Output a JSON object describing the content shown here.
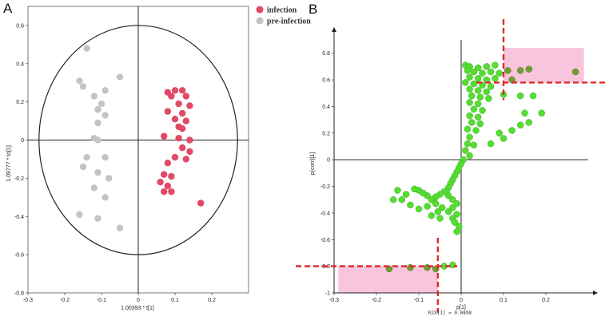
{
  "panels": {
    "a": "A",
    "b": "B"
  },
  "chart_data": [
    {
      "type": "scatter",
      "title": "",
      "xlabel": "1.00393 * t[1]",
      "ylabel": "1.09777 * to[1]",
      "xlim": [
        -0.3,
        0.3
      ],
      "ylim": [
        -0.8,
        0.7
      ],
      "xticks": [
        "-0.3",
        "-0.2",
        "-0.1",
        "0",
        "0.1",
        "0.2"
      ],
      "yticks": [
        "0.6",
        "0.4",
        "0.2",
        "0",
        "-0.2",
        "-0.4",
        "-0.6",
        "-0.8"
      ],
      "grid": false,
      "legend_position": "top-right",
      "ellipse": {
        "rx": 0.27,
        "ry": 0.6
      },
      "series": [
        {
          "name": "infection",
          "color": "#e04a66",
          "points": [
            [
              0.08,
              0.25
            ],
            [
              0.1,
              0.26
            ],
            [
              0.12,
              0.26
            ],
            [
              0.09,
              0.23
            ],
            [
              0.13,
              0.23
            ],
            [
              0.11,
              0.19
            ],
            [
              0.14,
              0.18
            ],
            [
              0.08,
              0.15
            ],
            [
              0.12,
              0.14
            ],
            [
              0.1,
              0.11
            ],
            [
              0.13,
              0.1
            ],
            [
              0.11,
              0.07
            ],
            [
              0.12,
              0.06
            ],
            [
              0.07,
              0.02
            ],
            [
              0.11,
              0.01
            ],
            [
              0.14,
              0.0
            ],
            [
              0.12,
              -0.04
            ],
            [
              0.14,
              -0.06
            ],
            [
              0.1,
              -0.09
            ],
            [
              0.13,
              -0.1
            ],
            [
              0.08,
              -0.12
            ],
            [
              0.07,
              -0.18
            ],
            [
              0.09,
              -0.19
            ],
            [
              0.06,
              -0.22
            ],
            [
              0.08,
              -0.24
            ],
            [
              0.07,
              -0.27
            ],
            [
              0.09,
              -0.27
            ],
            [
              0.17,
              -0.33
            ]
          ]
        },
        {
          "name": "pre-infection",
          "color": "#c4c4c4",
          "points": [
            [
              -0.14,
              0.48
            ],
            [
              -0.05,
              0.33
            ],
            [
              -0.16,
              0.31
            ],
            [
              -0.15,
              0.28
            ],
            [
              -0.09,
              0.26
            ],
            [
              -0.12,
              0.23
            ],
            [
              -0.1,
              0.19
            ],
            [
              -0.11,
              0.16
            ],
            [
              -0.09,
              0.13
            ],
            [
              -0.11,
              0.09
            ],
            [
              -0.12,
              0.01
            ],
            [
              -0.11,
              0.0
            ],
            [
              -0.09,
              -0.09
            ],
            [
              -0.14,
              -0.09
            ],
            [
              -0.15,
              -0.14
            ],
            [
              -0.11,
              -0.17
            ],
            [
              -0.08,
              -0.2
            ],
            [
              -0.12,
              -0.25
            ],
            [
              -0.09,
              -0.3
            ],
            [
              -0.16,
              -0.39
            ],
            [
              -0.11,
              -0.41
            ],
            [
              -0.05,
              -0.46
            ]
          ]
        }
      ]
    },
    {
      "type": "scatter",
      "title": "",
      "xlabel": "p[1]",
      "ylabel": "p(corr)[1]",
      "note": "R2X[1] = 0.0898",
      "xlim": [
        -0.3,
        0.3
      ],
      "ylim": [
        -1.0,
        0.9
      ],
      "xticks": [
        "-0.3",
        "-0.2",
        "-0.1",
        "0",
        "0.1",
        "0.2"
      ],
      "yticks": [
        "0.8",
        "0.6",
        "0.4",
        "0.2",
        "0",
        "-0.2",
        "-0.4",
        "-0.6",
        "-0.8",
        "-1"
      ],
      "grid": false,
      "cutoffs": {
        "x_pos": 0.1,
        "x_neg": -0.055,
        "y_pos": 0.58,
        "y_neg": -0.8
      },
      "highlight_regions": [
        {
          "x": [
            0.1,
            0.29
          ],
          "y": [
            0.58,
            0.84
          ]
        },
        {
          "x": [
            -0.29,
            -0.055
          ],
          "y": [
            -1.0,
            -0.8
          ]
        }
      ],
      "series": [
        {
          "name": "",
          "color": "#55dd33",
          "points": [
            [
              0.01,
              0.71
            ],
            [
              0.02,
              0.7
            ],
            [
              0.04,
              0.69
            ],
            [
              0.06,
              0.7
            ],
            [
              0.08,
              0.71
            ],
            [
              0.015,
              0.67
            ],
            [
              0.03,
              0.66
            ],
            [
              0.05,
              0.65
            ],
            [
              0.07,
              0.66
            ],
            [
              0.09,
              0.65
            ],
            [
              0.02,
              0.62
            ],
            [
              0.04,
              0.61
            ],
            [
              0.06,
              0.6
            ],
            [
              0.08,
              0.61
            ],
            [
              0.01,
              0.58
            ],
            [
              0.03,
              0.57
            ],
            [
              0.05,
              0.56
            ],
            [
              0.07,
              0.55
            ],
            [
              0.02,
              0.53
            ],
            [
              0.04,
              0.52
            ],
            [
              0.06,
              0.51
            ],
            [
              0.025,
              0.48
            ],
            [
              0.045,
              0.47
            ],
            [
              0.065,
              0.46
            ],
            [
              0.02,
              0.43
            ],
            [
              0.04,
              0.42
            ],
            [
              0.03,
              0.38
            ],
            [
              0.05,
              0.37
            ],
            [
              0.02,
              0.33
            ],
            [
              0.04,
              0.32
            ],
            [
              0.025,
              0.28
            ],
            [
              0.045,
              0.27
            ],
            [
              0.015,
              0.23
            ],
            [
              0.035,
              0.22
            ],
            [
              0.02,
              0.17
            ],
            [
              0.015,
              0.12
            ],
            [
              0.03,
              0.11
            ],
            [
              0.01,
              0.07
            ],
            [
              0.02,
              0.03
            ],
            [
              0.005,
              0.0
            ],
            [
              0.0,
              -0.03
            ],
            [
              -0.005,
              -0.06
            ],
            [
              -0.01,
              -0.09
            ],
            [
              -0.015,
              -0.12
            ],
            [
              -0.02,
              -0.15
            ],
            [
              -0.025,
              -0.18
            ],
            [
              -0.03,
              -0.21
            ],
            [
              -0.035,
              -0.24
            ],
            [
              -0.03,
              -0.27
            ],
            [
              -0.02,
              -0.3
            ],
            [
              -0.01,
              -0.33
            ],
            [
              -0.02,
              -0.36
            ],
            [
              -0.03,
              -0.39
            ],
            [
              -0.01,
              -0.41
            ],
            [
              -0.02,
              -0.44
            ],
            [
              -0.015,
              -0.47
            ],
            [
              -0.005,
              -0.5
            ],
            [
              -0.01,
              -0.54
            ],
            [
              -0.04,
              -0.24
            ],
            [
              -0.05,
              -0.26
            ],
            [
              -0.06,
              -0.28
            ],
            [
              -0.07,
              -0.3
            ],
            [
              -0.08,
              -0.27
            ],
            [
              -0.09,
              -0.25
            ],
            [
              -0.1,
              -0.23
            ],
            [
              -0.11,
              -0.22
            ],
            [
              -0.13,
              -0.26
            ],
            [
              -0.14,
              -0.3
            ],
            [
              -0.12,
              -0.34
            ],
            [
              -0.1,
              -0.37
            ],
            [
              -0.08,
              -0.35
            ],
            [
              -0.06,
              -0.33
            ],
            [
              -0.045,
              -0.36
            ],
            [
              -0.055,
              -0.39
            ],
            [
              -0.07,
              -0.42
            ],
            [
              -0.05,
              -0.44
            ],
            [
              -0.15,
              -0.23
            ],
            [
              -0.16,
              -0.3
            ],
            [
              0.11,
              0.67
            ],
            [
              0.14,
              0.67
            ],
            [
              0.16,
              0.68
            ],
            [
              0.27,
              0.66
            ],
            [
              0.12,
              0.6
            ],
            [
              0.1,
              0.49
            ],
            [
              0.14,
              0.48
            ],
            [
              0.17,
              0.48
            ],
            [
              0.15,
              0.35
            ],
            [
              0.19,
              0.35
            ],
            [
              0.16,
              0.28
            ],
            [
              0.14,
              0.26
            ],
            [
              0.12,
              0.22
            ],
            [
              0.1,
              0.16
            ],
            [
              0.09,
              0.2
            ],
            [
              0.07,
              0.12
            ],
            [
              -0.17,
              -0.82
            ],
            [
              -0.12,
              -0.81
            ],
            [
              -0.08,
              -0.81
            ],
            [
              -0.06,
              -0.82
            ],
            [
              -0.02,
              -0.79
            ],
            [
              -0.04,
              -0.8
            ]
          ]
        }
      ]
    }
  ]
}
